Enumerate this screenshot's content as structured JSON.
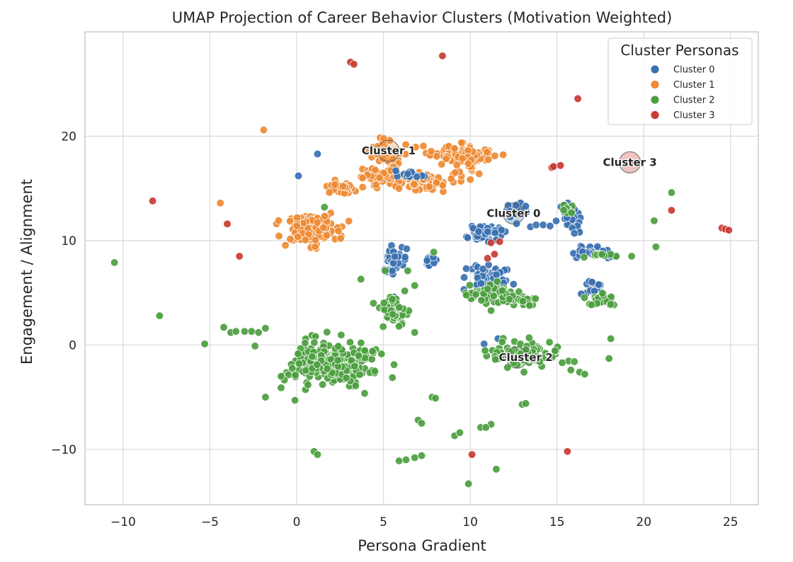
{
  "chart_data": {
    "type": "scatter",
    "title": "UMAP Projection of Career Behavior Clusters (Motivation Weighted)",
    "xlabel": "Persona Gradient",
    "ylabel": "Engagement / Alignment",
    "xlim": [
      -12.2,
      26.6
    ],
    "ylim": [
      -15.3,
      30.0
    ],
    "xticks": [
      -10,
      -5,
      0,
      5,
      10,
      15,
      20,
      25
    ],
    "yticks": [
      -10,
      0,
      10,
      20
    ],
    "grid": true,
    "legend": {
      "title": "Cluster Personas",
      "placement": "top-right"
    },
    "series": [
      {
        "name": "Cluster 0",
        "color": "#3a70b0",
        "centroid": [
          12.5,
          12.6
        ],
        "blobs": [
          [
            10.8,
            10.8,
            0.7,
            0.5,
            60
          ],
          [
            11.0,
            6.5,
            0.8,
            0.8,
            70
          ],
          [
            15.7,
            12.0,
            0.5,
            1.0,
            30
          ],
          [
            17.2,
            8.9,
            0.8,
            0.3,
            40
          ],
          [
            17.2,
            5.6,
            0.5,
            0.4,
            20
          ],
          [
            5.6,
            8.0,
            0.4,
            0.8,
            40
          ],
          [
            7.6,
            8.0,
            0.2,
            0.4,
            12
          ],
          [
            6.5,
            16.3,
            0.6,
            0.3,
            15
          ],
          [
            12.6,
            12.7,
            0.5,
            0.8,
            20
          ]
        ],
        "points": [
          [
            0.1,
            16.2
          ],
          [
            1.2,
            18.3
          ],
          [
            13.8,
            11.5
          ],
          [
            14.2,
            11.5
          ],
          [
            14.6,
            11.4
          ],
          [
            10.8,
            0.1
          ],
          [
            11.6,
            0.6
          ],
          [
            5.6,
            4.6
          ],
          [
            13.2,
            13.3
          ],
          [
            16.3,
            10.8
          ],
          [
            16.0,
            10.7
          ]
        ]
      },
      {
        "name": "Cluster 1",
        "color": "#ee8a33",
        "centroid": [
          5.3,
          18.6
        ],
        "blobs": [
          [
            0.8,
            11.0,
            1.0,
            0.9,
            190
          ],
          [
            2.5,
            15.1,
            0.6,
            0.4,
            30
          ],
          [
            5.3,
            18.4,
            0.6,
            0.7,
            40
          ],
          [
            9.4,
            18.2,
            1.3,
            0.6,
            90
          ],
          [
            7.6,
            15.6,
            1.1,
            0.6,
            60
          ],
          [
            5.4,
            15.9,
            1.0,
            0.5,
            40
          ],
          [
            4.8,
            16.4,
            0.9,
            0.4,
            25
          ],
          [
            9.8,
            17.3,
            0.4,
            0.6,
            18
          ]
        ],
        "points": [
          [
            -1.9,
            20.6
          ],
          [
            -4.4,
            13.6
          ],
          [
            3.8,
            16.0
          ]
        ]
      },
      {
        "name": "Cluster 2",
        "color": "#4b9e3e",
        "centroid": [
          12.7,
          -1.2
        ],
        "blobs": [
          [
            2.0,
            -1.8,
            1.5,
            1.3,
            300
          ],
          [
            5.6,
            3.2,
            0.5,
            1.0,
            55
          ],
          [
            11.2,
            4.8,
            1.0,
            0.6,
            70
          ],
          [
            13.1,
            -0.8,
            1.3,
            0.8,
            90
          ],
          [
            17.5,
            4.4,
            0.5,
            0.5,
            25
          ],
          [
            13.0,
            4.2,
            0.6,
            0.4,
            20
          ],
          [
            15.7,
            13.1,
            0.2,
            0.4,
            8
          ],
          [
            17.8,
            8.6,
            0.6,
            0.2,
            12
          ]
        ],
        "points": [
          [
            -10.5,
            7.9
          ],
          [
            -7.9,
            2.8
          ],
          [
            -5.3,
            0.1
          ],
          [
            -4.2,
            1.7
          ],
          [
            -3.8,
            1.2
          ],
          [
            -3.5,
            1.3
          ],
          [
            -3.0,
            1.3
          ],
          [
            -2.6,
            1.3
          ],
          [
            -2.2,
            1.2
          ],
          [
            -1.8,
            1.6
          ],
          [
            -2.4,
            -0.1
          ],
          [
            -1.8,
            -5.0
          ],
          [
            -0.9,
            -4.1
          ],
          [
            -0.1,
            -5.3
          ],
          [
            1.0,
            -10.2
          ],
          [
            1.2,
            -10.5
          ],
          [
            1.6,
            13.2
          ],
          [
            3.7,
            6.3
          ],
          [
            6.4,
            7.1
          ],
          [
            6.8,
            5.7
          ],
          [
            6.8,
            1.2
          ],
          [
            5.1,
            7.1
          ],
          [
            7.9,
            8.9
          ],
          [
            7.0,
            -7.2
          ],
          [
            7.2,
            -7.5
          ],
          [
            7.8,
            -5.0
          ],
          [
            8.0,
            -5.1
          ],
          [
            9.1,
            -8.7
          ],
          [
            9.4,
            -8.4
          ],
          [
            10.6,
            -7.9
          ],
          [
            11.2,
            -7.6
          ],
          [
            10.9,
            -7.9
          ],
          [
            13.0,
            -5.7
          ],
          [
            13.2,
            -5.6
          ],
          [
            11.5,
            -11.9
          ],
          [
            9.9,
            -13.3
          ],
          [
            5.9,
            -11.1
          ],
          [
            6.3,
            -11.0
          ],
          [
            6.8,
            -10.8
          ],
          [
            7.2,
            -10.6
          ],
          [
            11.2,
            3.3
          ],
          [
            13.1,
            -2.6
          ],
          [
            14.0,
            -1.6
          ],
          [
            15.3,
            -1.7
          ],
          [
            16.0,
            -1.6
          ],
          [
            15.8,
            -2.4
          ],
          [
            16.3,
            -2.6
          ],
          [
            16.6,
            -2.8
          ],
          [
            18.0,
            -1.3
          ],
          [
            18.1,
            0.6
          ],
          [
            18.1,
            3.9
          ],
          [
            19.3,
            8.5
          ],
          [
            20.6,
            11.9
          ],
          [
            20.7,
            9.4
          ],
          [
            21.6,
            14.6
          ],
          [
            4.5,
            -2.5
          ],
          [
            -0.9,
            -3.0
          ]
        ]
      },
      {
        "name": "Cluster 3",
        "color": "#c93a32",
        "centroid": [
          19.2,
          17.5
        ],
        "blobs": [],
        "points": [
          [
            3.1,
            27.1
          ],
          [
            3.3,
            26.9
          ],
          [
            8.4,
            27.7
          ],
          [
            16.2,
            23.6
          ],
          [
            -8.3,
            13.8
          ],
          [
            -4.0,
            11.6
          ],
          [
            -3.3,
            8.5
          ],
          [
            14.7,
            17.0
          ],
          [
            14.8,
            17.1
          ],
          [
            15.2,
            17.2
          ],
          [
            19.2,
            17.5
          ],
          [
            21.6,
            12.9
          ],
          [
            24.5,
            11.2
          ],
          [
            24.7,
            11.1
          ],
          [
            24.9,
            11.0
          ],
          [
            11.0,
            8.3
          ],
          [
            11.4,
            8.7
          ],
          [
            11.7,
            9.9
          ],
          [
            11.2,
            9.8
          ],
          [
            10.1,
            -10.5
          ],
          [
            15.6,
            -10.2
          ]
        ]
      }
    ],
    "annotations": [
      {
        "text": "Cluster 0",
        "x": 12.5,
        "y": 12.6
      },
      {
        "text": "Cluster 1",
        "x": 5.3,
        "y": 18.6
      },
      {
        "text": "Cluster 2",
        "x": 13.2,
        "y": -1.2
      },
      {
        "text": "Cluster 3",
        "x": 19.2,
        "y": 17.5
      }
    ]
  }
}
